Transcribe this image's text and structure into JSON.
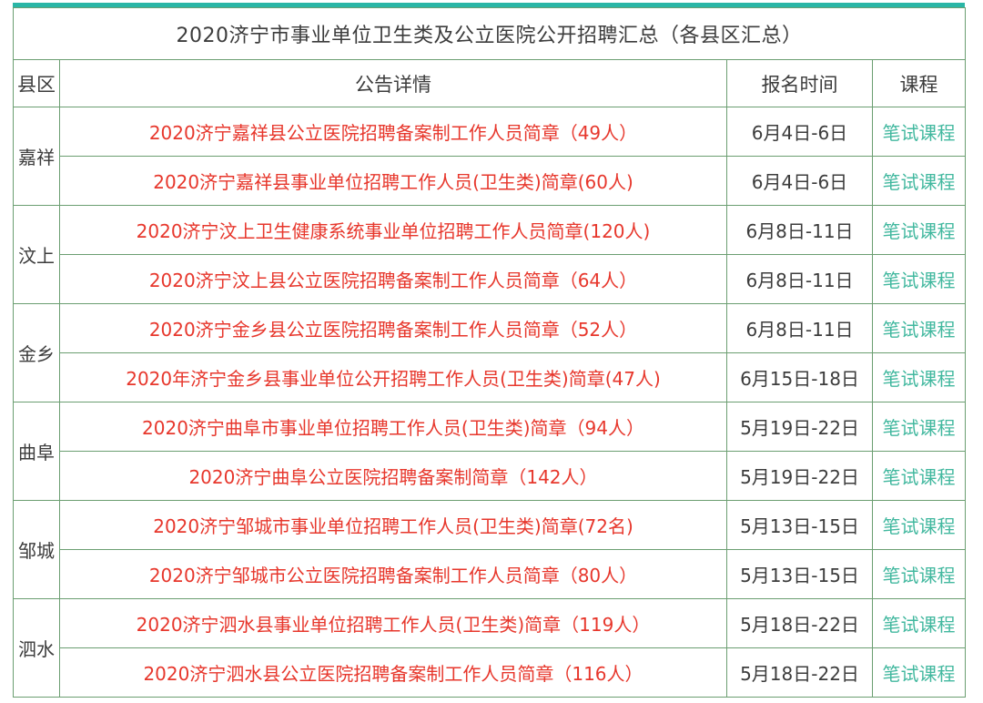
{
  "title": "2020济宁市事业单位卫生类及公立医院公开招聘汇总（各县区汇总）",
  "columns": {
    "county": "县区",
    "detail": "公告详情",
    "time": "报名时间",
    "course": "课程"
  },
  "colors": {
    "accent_bar": "#2ab6a6",
    "table_border": "#6b9e71",
    "title_text": "#3c3c3c",
    "announcement_link": "#e7372c",
    "course_link": "#42b89f"
  },
  "groups": [
    {
      "county": "嘉祥",
      "rows": [
        {
          "announcement": "2020济宁嘉祥县公立医院招聘备案制工作人员简章（49人）",
          "time": "6月4日-6日",
          "course": "笔试课程"
        },
        {
          "announcement": "2020济宁嘉祥县事业单位招聘工作人员(卫生类)简章(60人)",
          "time": "6月4日-6日",
          "course": "笔试课程"
        }
      ]
    },
    {
      "county": "汶上",
      "rows": [
        {
          "announcement": "2020济宁汶上卫生健康系统事业单位招聘工作人员简章(120人)",
          "time": "6月8日-11日",
          "course": "笔试课程"
        },
        {
          "announcement": "2020济宁汶上县公立医院招聘备案制工作人员简章（64人）",
          "time": "6月8日-11日",
          "course": "笔试课程"
        }
      ]
    },
    {
      "county": "金乡",
      "rows": [
        {
          "announcement": "2020济宁金乡县公立医院招聘备案制工作人员简章（52人）",
          "time": "6月8日-11日",
          "course": "笔试课程"
        },
        {
          "announcement": "2020年济宁金乡县事业单位公开招聘工作人员(卫生类)简章(47人)",
          "time": "6月15日-18日",
          "course": "笔试课程"
        }
      ]
    },
    {
      "county": "曲阜",
      "rows": [
        {
          "announcement": "2020济宁曲阜市事业单位招聘工作人员(卫生类)简章（94人）",
          "time": "5月19日-22日",
          "course": "笔试课程"
        },
        {
          "announcement": "2020济宁曲阜公立医院招聘备案制简章（142人）",
          "time": "5月19日-22日",
          "course": "笔试课程"
        }
      ]
    },
    {
      "county": "邹城",
      "rows": [
        {
          "announcement": "2020济宁邹城市事业单位招聘工作人员(卫生类)简章(72名)",
          "time": "5月13日-15日",
          "course": "笔试课程"
        },
        {
          "announcement": "2020济宁邹城市公立医院招聘备案制工作人员简章（80人）",
          "time": "5月13日-15日",
          "course": "笔试课程"
        }
      ]
    },
    {
      "county": "泗水",
      "rows": [
        {
          "announcement": "2020济宁泗水县事业单位招聘工作人员(卫生类)简章（119人）",
          "time": "5月18日-22日",
          "course": "笔试课程"
        },
        {
          "announcement": "2020济宁泗水县公立医院招聘备案制工作人员简章（116人）",
          "time": "5月18日-22日",
          "course": "笔试课程"
        }
      ]
    }
  ]
}
